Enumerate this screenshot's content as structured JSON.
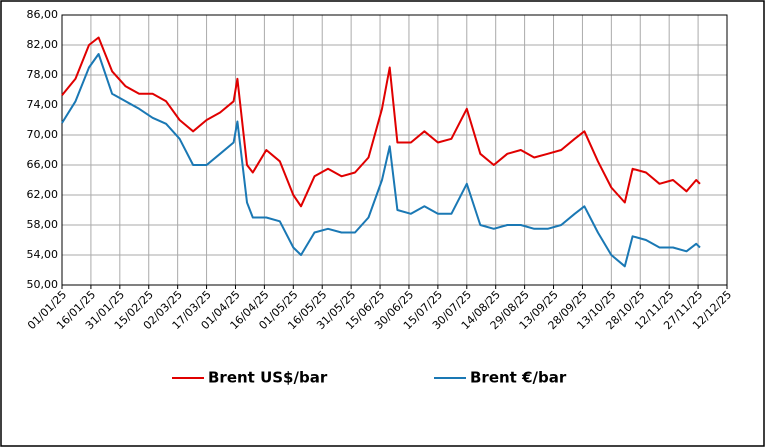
{
  "chart_data": {
    "type": "line",
    "x": [
      "01/01/25",
      "08/01/25",
      "15/01/25",
      "20/01/25",
      "27/01/25",
      "03/02/25",
      "10/02/25",
      "17/02/25",
      "24/02/25",
      "03/03/25",
      "10/03/25",
      "17/03/25",
      "24/03/25",
      "31/03/25",
      "02/04/25",
      "07/04/25",
      "10/04/25",
      "17/04/25",
      "24/04/25",
      "01/05/25",
      "05/05/25",
      "12/05/25",
      "19/05/25",
      "26/05/25",
      "02/06/25",
      "09/06/25",
      "16/06/25",
      "20/06/25",
      "24/06/25",
      "01/07/25",
      "08/07/25",
      "15/07/25",
      "22/07/25",
      "30/07/25",
      "06/08/25",
      "13/08/25",
      "20/08/25",
      "27/08/25",
      "03/09/25",
      "10/09/25",
      "17/09/25",
      "24/09/25",
      "29/09/25",
      "06/10/25",
      "13/10/25",
      "20/10/25",
      "24/10/25",
      "31/10/25",
      "07/11/25",
      "14/11/25",
      "21/11/25",
      "26/11/25",
      "28/11/25"
    ],
    "series": [
      {
        "name": "Brent US$/bar",
        "color": "#e00000",
        "values": [
          75.3,
          77.5,
          82,
          83,
          78.5,
          76.5,
          75.5,
          75.5,
          74.5,
          72,
          70.5,
          72,
          73,
          74.5,
          77.5,
          66,
          65,
          68,
          66.5,
          62,
          60.5,
          64.5,
          65.5,
          64.5,
          65,
          67,
          73.5,
          79,
          69,
          69,
          70.5,
          69,
          69.5,
          73.5,
          67.5,
          66,
          67.5,
          68,
          67,
          67.5,
          68,
          69.5,
          70.5,
          66.5,
          63,
          61,
          65.5,
          65,
          63.5,
          64,
          62.5,
          64,
          63.5
        ]
      },
      {
        "name": "Brent €/bar",
        "color": "#1a78b4",
        "values": [
          71.6,
          74.5,
          79,
          80.8,
          75.5,
          74.5,
          73.5,
          72.3,
          71.5,
          69.5,
          66,
          66,
          67.5,
          69,
          71.8,
          61,
          59,
          59,
          58.5,
          55,
          54,
          57,
          57.5,
          57,
          57,
          59,
          64,
          68.5,
          60,
          59.5,
          60.5,
          59.5,
          59.5,
          63.5,
          58,
          57.5,
          58,
          58,
          57.5,
          57.5,
          58,
          59.5,
          60.5,
          57,
          54,
          52.5,
          56.5,
          56,
          55,
          55,
          54.5,
          55.5,
          55
        ]
      }
    ],
    "xlim": [
      "01/01/25",
      "12/12/25"
    ],
    "xticks": [
      "01/01/25",
      "16/01/25",
      "31/01/25",
      "15/02/25",
      "02/03/25",
      "17/03/25",
      "01/04/25",
      "16/04/25",
      "01/05/25",
      "16/05/25",
      "31/05/25",
      "15/06/25",
      "30/06/25",
      "15/07/25",
      "30/07/25",
      "14/08/25",
      "29/08/25",
      "13/09/25",
      "28/09/25",
      "13/10/25",
      "28/10/25",
      "12/11/25",
      "27/11/25",
      "12/12/25"
    ],
    "ylim": [
      50,
      86
    ],
    "yticks": [
      {
        "value": 50,
        "label": "50,00"
      },
      {
        "value": 54,
        "label": "54,00"
      },
      {
        "value": 58,
        "label": "58,00"
      },
      {
        "value": 62,
        "label": "62,00"
      },
      {
        "value": 66,
        "label": "66,00"
      },
      {
        "value": 70,
        "label": "70,00"
      },
      {
        "value": 74,
        "label": "74,00"
      },
      {
        "value": 78,
        "label": "78,00"
      },
      {
        "value": 82,
        "label": "82,00"
      },
      {
        "value": 86,
        "label": "86,00"
      }
    ],
    "grid": true
  }
}
